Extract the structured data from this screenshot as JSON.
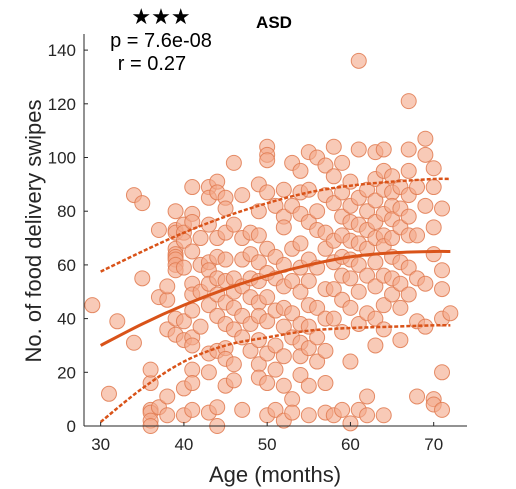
{
  "chart_data": {
    "type": "scatter",
    "title": "ASD",
    "xlabel": "Age (months)",
    "ylabel": "No. of food delivery swipes",
    "xlim": [
      28,
      74
    ],
    "ylim": [
      0,
      146
    ],
    "xticks": [
      30,
      40,
      50,
      60,
      70
    ],
    "yticks": [
      0,
      20,
      40,
      60,
      80,
      100,
      120,
      140
    ],
    "significance": "★★★",
    "p_text": "p = 7.6e-08",
    "r_text": "r = 0.27",
    "colors": {
      "point_fill": "#f4a98a",
      "point_edge": "#e07a50",
      "fit": "#d95319",
      "axis": "#262626"
    },
    "fit": {
      "x": [
        30,
        35,
        40,
        45,
        50,
        55,
        60,
        65,
        70,
        72
      ],
      "y": [
        30,
        38,
        45,
        51,
        56,
        60,
        63,
        64.5,
        65,
        65
      ],
      "lower": [
        1.5,
        14,
        24,
        30,
        33,
        35.5,
        36.5,
        37,
        37.5,
        37.5
      ],
      "upper": [
        57.5,
        65,
        72,
        78,
        83,
        87,
        89.5,
        91,
        92,
        92
      ]
    },
    "points": [
      [
        29,
        45
      ],
      [
        31,
        12
      ],
      [
        32,
        39
      ],
      [
        34,
        31
      ],
      [
        34,
        86
      ],
      [
        35,
        83
      ],
      [
        35,
        55
      ],
      [
        36,
        16
      ],
      [
        36,
        21
      ],
      [
        36,
        6
      ],
      [
        36,
        5
      ],
      [
        36,
        2
      ],
      [
        36,
        0
      ],
      [
        37,
        73
      ],
      [
        37,
        48
      ],
      [
        37,
        7
      ],
      [
        38,
        47
      ],
      [
        38,
        52
      ],
      [
        38,
        36
      ],
      [
        38,
        11
      ],
      [
        38,
        4
      ],
      [
        39,
        73
      ],
      [
        39,
        80
      ],
      [
        39,
        72
      ],
      [
        39,
        66
      ],
      [
        39,
        64
      ],
      [
        39,
        63
      ],
      [
        39,
        62
      ],
      [
        39,
        60
      ],
      [
        39,
        58
      ],
      [
        39,
        40
      ],
      [
        39,
        34
      ],
      [
        40,
        75
      ],
      [
        40,
        72
      ],
      [
        40,
        69
      ],
      [
        40,
        59
      ],
      [
        40,
        39
      ],
      [
        40,
        32
      ],
      [
        40,
        14
      ],
      [
        40,
        4
      ],
      [
        41,
        89
      ],
      [
        41,
        79
      ],
      [
        41,
        76
      ],
      [
        41,
        65
      ],
      [
        41,
        53
      ],
      [
        41,
        49
      ],
      [
        41,
        43
      ],
      [
        41,
        33
      ],
      [
        41,
        30
      ],
      [
        41,
        21
      ],
      [
        41,
        16
      ],
      [
        41,
        6
      ],
      [
        42,
        70
      ],
      [
        42,
        60
      ],
      [
        42,
        50
      ],
      [
        42,
        37
      ],
      [
        43,
        89
      ],
      [
        43,
        85
      ],
      [
        43,
        75
      ],
      [
        43,
        61
      ],
      [
        43,
        58
      ],
      [
        43,
        53
      ],
      [
        43,
        45
      ],
      [
        43,
        27
      ],
      [
        43,
        20
      ],
      [
        43,
        5
      ],
      [
        44,
        91
      ],
      [
        44,
        87
      ],
      [
        44,
        70
      ],
      [
        44,
        63
      ],
      [
        44,
        55
      ],
      [
        44,
        49
      ],
      [
        44,
        41
      ],
      [
        44,
        28
      ],
      [
        44,
        7
      ],
      [
        44,
        0
      ],
      [
        45,
        85
      ],
      [
        45,
        81
      ],
      [
        45,
        72
      ],
      [
        45,
        62
      ],
      [
        45,
        54
      ],
      [
        45,
        46
      ],
      [
        45,
        38
      ],
      [
        45,
        29
      ],
      [
        45,
        25
      ],
      [
        45,
        15
      ],
      [
        46,
        98
      ],
      [
        46,
        75
      ],
      [
        46,
        55
      ],
      [
        46,
        50
      ],
      [
        46,
        44
      ],
      [
        46,
        36
      ],
      [
        46,
        23
      ],
      [
        46,
        17
      ],
      [
        47,
        86
      ],
      [
        47,
        70
      ],
      [
        47,
        62
      ],
      [
        47,
        52
      ],
      [
        47,
        41
      ],
      [
        47,
        33
      ],
      [
        47,
        6
      ],
      [
        48,
        72
      ],
      [
        48,
        64
      ],
      [
        48,
        55
      ],
      [
        48,
        48
      ],
      [
        48,
        38
      ],
      [
        48,
        28
      ],
      [
        49,
        90
      ],
      [
        49,
        80
      ],
      [
        49,
        71
      ],
      [
        49,
        61
      ],
      [
        49,
        54
      ],
      [
        49,
        46
      ],
      [
        49,
        41
      ],
      [
        49,
        32
      ],
      [
        49,
        23
      ],
      [
        49,
        18
      ],
      [
        50,
        104
      ],
      [
        50,
        101
      ],
      [
        50,
        99
      ],
      [
        50,
        87
      ],
      [
        50,
        66
      ],
      [
        50,
        57
      ],
      [
        50,
        48
      ],
      [
        50,
        39
      ],
      [
        50,
        27
      ],
      [
        50,
        16
      ],
      [
        50,
        4
      ],
      [
        51,
        82
      ],
      [
        51,
        63
      ],
      [
        51,
        55
      ],
      [
        51,
        43
      ],
      [
        51,
        30
      ],
      [
        51,
        21
      ],
      [
        51,
        6
      ],
      [
        52,
        88
      ],
      [
        52,
        78
      ],
      [
        52,
        74
      ],
      [
        52,
        60
      ],
      [
        52,
        52
      ],
      [
        52,
        44
      ],
      [
        52,
        37
      ],
      [
        52,
        26
      ],
      [
        52,
        15
      ],
      [
        52,
        2
      ],
      [
        53,
        98
      ],
      [
        53,
        82
      ],
      [
        53,
        66
      ],
      [
        53,
        54
      ],
      [
        53,
        42
      ],
      [
        53,
        33
      ],
      [
        53,
        10
      ],
      [
        53,
        5
      ],
      [
        54,
        95
      ],
      [
        54,
        87
      ],
      [
        54,
        79
      ],
      [
        54,
        68
      ],
      [
        54,
        59
      ],
      [
        54,
        50
      ],
      [
        54,
        38
      ],
      [
        54,
        31
      ],
      [
        54,
        26
      ],
      [
        54,
        19
      ],
      [
        55,
        102
      ],
      [
        55,
        88
      ],
      [
        55,
        76
      ],
      [
        55,
        62
      ],
      [
        55,
        54
      ],
      [
        55,
        45
      ],
      [
        55,
        37
      ],
      [
        55,
        29
      ],
      [
        55,
        15
      ],
      [
        55,
        4
      ],
      [
        56,
        100
      ],
      [
        56,
        80
      ],
      [
        56,
        73
      ],
      [
        56,
        59
      ],
      [
        56,
        44
      ],
      [
        56,
        33
      ],
      [
        56,
        24
      ],
      [
        57,
        97
      ],
      [
        57,
        86
      ],
      [
        57,
        72
      ],
      [
        57,
        66
      ],
      [
        57,
        51
      ],
      [
        57,
        40
      ],
      [
        57,
        28
      ],
      [
        57,
        16
      ],
      [
        57,
        5
      ],
      [
        58,
        104
      ],
      [
        58,
        93
      ],
      [
        58,
        83
      ],
      [
        58,
        69
      ],
      [
        58,
        61
      ],
      [
        58,
        51
      ],
      [
        58,
        40
      ],
      [
        58,
        4
      ],
      [
        59,
        98
      ],
      [
        59,
        87
      ],
      [
        59,
        78
      ],
      [
        59,
        71
      ],
      [
        59,
        63
      ],
      [
        59,
        56
      ],
      [
        59,
        47
      ],
      [
        59,
        35
      ],
      [
        59,
        6
      ],
      [
        60,
        91
      ],
      [
        60,
        82
      ],
      [
        60,
        76
      ],
      [
        60,
        69
      ],
      [
        60,
        62
      ],
      [
        60,
        55
      ],
      [
        60,
        44
      ],
      [
        60,
        24
      ],
      [
        60,
        1
      ],
      [
        61,
        136
      ],
      [
        61,
        103
      ],
      [
        61,
        85
      ],
      [
        61,
        75
      ],
      [
        61,
        68
      ],
      [
        61,
        60
      ],
      [
        61,
        50
      ],
      [
        61,
        38
      ],
      [
        61,
        6
      ],
      [
        62,
        88
      ],
      [
        62,
        80
      ],
      [
        62,
        73
      ],
      [
        62,
        66
      ],
      [
        62,
        56
      ],
      [
        62,
        42
      ],
      [
        62,
        11
      ],
      [
        62,
        4
      ],
      [
        63,
        102
      ],
      [
        63,
        92
      ],
      [
        63,
        84
      ],
      [
        63,
        76
      ],
      [
        63,
        70
      ],
      [
        63,
        61
      ],
      [
        63,
        52
      ],
      [
        63,
        40
      ],
      [
        63,
        30
      ],
      [
        64,
        103
      ],
      [
        64,
        95
      ],
      [
        64,
        88
      ],
      [
        64,
        79
      ],
      [
        64,
        71
      ],
      [
        64,
        67
      ],
      [
        64,
        56
      ],
      [
        64,
        45
      ],
      [
        64,
        36
      ],
      [
        64,
        4
      ],
      [
        65,
        93
      ],
      [
        65,
        87
      ],
      [
        65,
        82
      ],
      [
        65,
        77
      ],
      [
        65,
        70
      ],
      [
        65,
        63
      ],
      [
        65,
        55
      ],
      [
        65,
        49
      ],
      [
        66,
        89
      ],
      [
        66,
        81
      ],
      [
        66,
        74
      ],
      [
        66,
        61
      ],
      [
        66,
        53
      ],
      [
        66,
        44
      ],
      [
        66,
        32
      ],
      [
        67,
        121
      ],
      [
        67,
        103
      ],
      [
        67,
        95
      ],
      [
        67,
        86
      ],
      [
        67,
        78
      ],
      [
        67,
        71
      ],
      [
        67,
        59
      ],
      [
        67,
        49
      ],
      [
        68,
        89
      ],
      [
        68,
        71
      ],
      [
        68,
        55
      ],
      [
        68,
        39
      ],
      [
        68,
        11
      ],
      [
        69,
        107
      ],
      [
        69,
        101
      ],
      [
        69,
        82
      ],
      [
        69,
        53
      ],
      [
        69,
        37
      ],
      [
        70,
        96
      ],
      [
        70,
        89
      ],
      [
        70,
        74
      ],
      [
        70,
        64
      ],
      [
        70,
        10
      ],
      [
        70,
        8
      ],
      [
        71,
        81
      ],
      [
        71,
        58
      ],
      [
        71,
        51
      ],
      [
        71,
        40
      ],
      [
        71,
        20
      ],
      [
        71,
        6
      ],
      [
        72,
        42
      ]
    ]
  }
}
